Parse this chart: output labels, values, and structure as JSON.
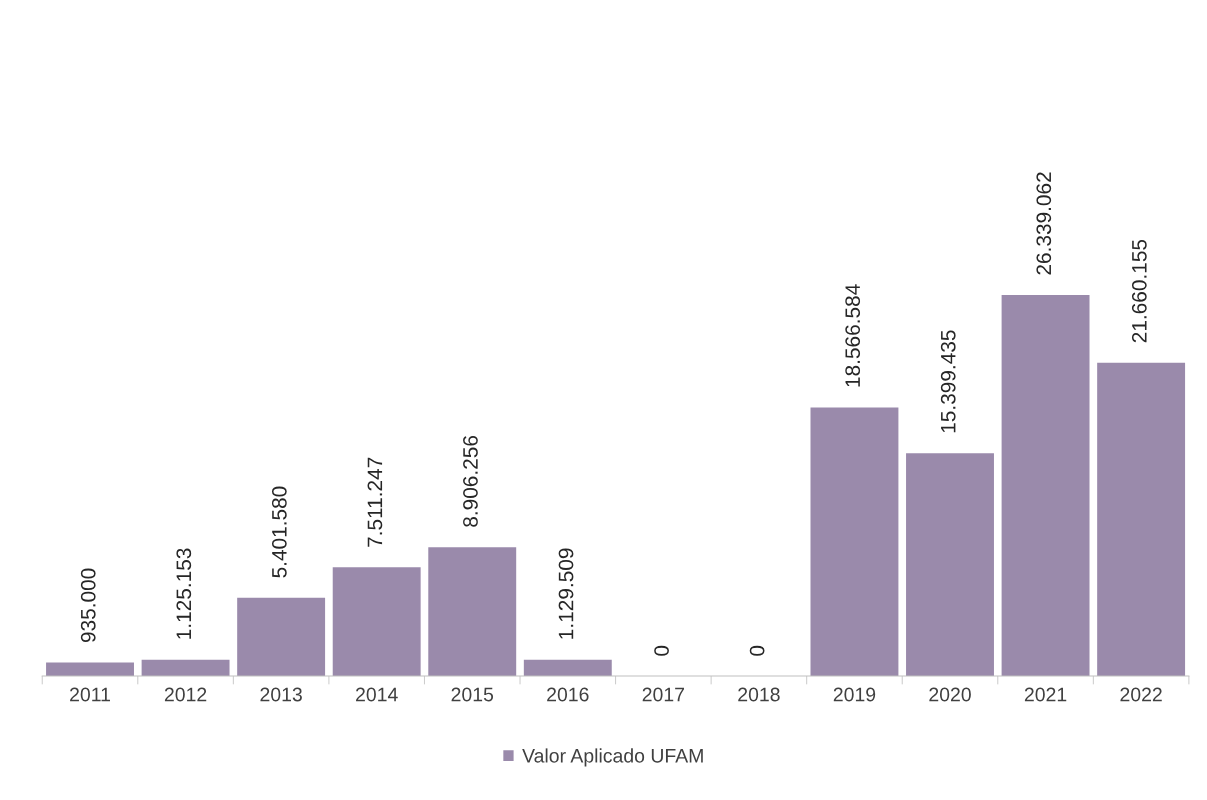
{
  "chart_data": {
    "type": "bar",
    "categories": [
      "2011",
      "2012",
      "2013",
      "2014",
      "2015",
      "2016",
      "2017",
      "2018",
      "2019",
      "2020",
      "2021",
      "2022"
    ],
    "series": [
      {
        "name": "Valor Aplicado UFAM",
        "color": "#9a8aab",
        "values": [
          935000,
          1125153,
          5401580,
          7511247,
          8906256,
          1129509,
          0,
          0,
          18566584,
          15399435,
          26339062,
          21660155
        ],
        "value_labels": [
          "935.000",
          "1.125.153",
          "5.401.580",
          "7.511.247",
          "8.906.256",
          "1.129.509",
          "0",
          "0",
          "18.566.584",
          "15.399.435",
          "26.339.062",
          "21.660.155"
        ]
      }
    ],
    "legend": "bottom",
    "grid": false
  }
}
